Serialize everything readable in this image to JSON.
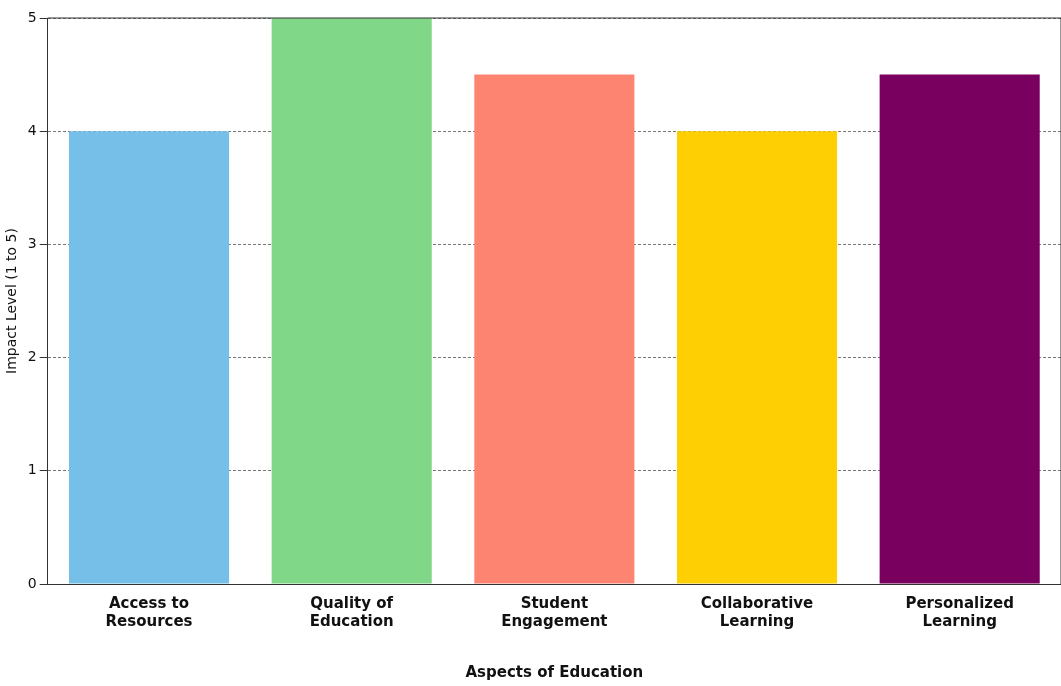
{
  "chart_data": {
    "type": "bar",
    "xlabel": "Aspects of Education",
    "ylabel": "Impact Level (1 to 5)",
    "categories": [
      "Access to Resources",
      "Quality of Education",
      "Student Engagement",
      "Collaborative Learning",
      "Personalized Learning"
    ],
    "values": [
      4,
      5,
      4.5,
      4,
      4.5
    ],
    "colors": [
      "#75bfe8",
      "#80d787",
      "#fd8471",
      "#fecf02",
      "#7a0060"
    ],
    "ylim": [
      0,
      5
    ],
    "yticks": [
      0,
      1,
      2,
      3,
      4,
      5
    ],
    "grid": "y",
    "legend": false
  }
}
